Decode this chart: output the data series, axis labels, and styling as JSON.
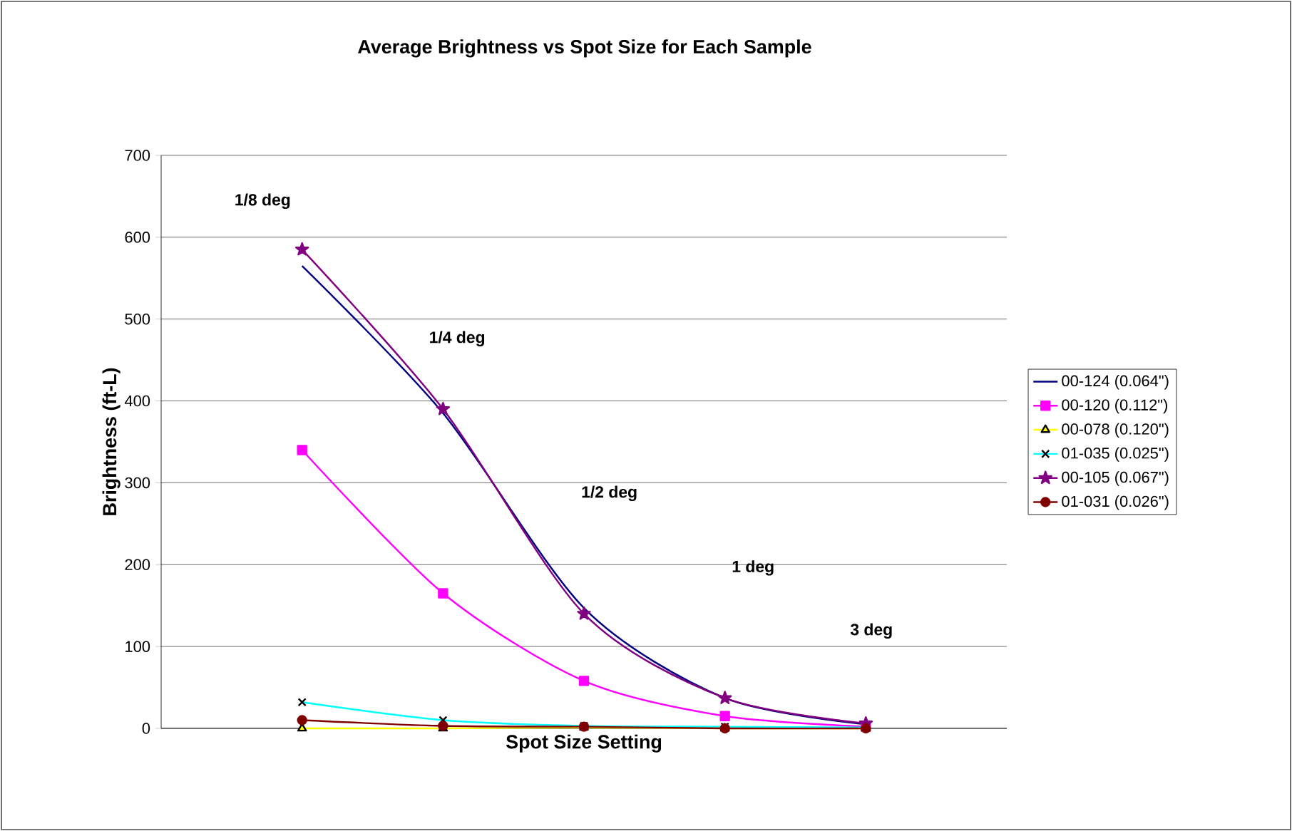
{
  "chart_data": {
    "type": "line",
    "title": "Average Brightness vs Spot Size for Each Sample",
    "xlabel": "Spot Size Setting",
    "ylabel": "Brightness (ft-L)",
    "categories": [
      null,
      null,
      null,
      null,
      null
    ],
    "series": [
      {
        "name": "00-124 (0.064\")",
        "color": "#000080",
        "marker": "none",
        "values": [
          565,
          385,
          147,
          37,
          5
        ]
      },
      {
        "name": "00-120 (0.112\")",
        "color": "#ff00ff",
        "marker": "square",
        "values": [
          340,
          165,
          58,
          15,
          2
        ]
      },
      {
        "name": "00-078 (0.120\")",
        "color": "#ffff00",
        "marker": "triangle",
        "values": [
          0,
          0,
          1,
          0,
          0
        ]
      },
      {
        "name": "01-035 (0.025\")",
        "color": "#00ffff",
        "marker": "cross",
        "values": [
          32,
          10,
          3,
          2,
          1
        ]
      },
      {
        "name": "00-105 (0.067\")",
        "color": "#800080",
        "marker": "star",
        "values": [
          585,
          390,
          140,
          37,
          6
        ]
      },
      {
        "name": "01-031 (0.026\")",
        "color": "#800000",
        "marker": "circle",
        "values": [
          10,
          3,
          2,
          0,
          0
        ]
      }
    ],
    "annotations": [
      "1/8 deg",
      "1/4 deg",
      "1/2 deg",
      "1 deg",
      "3 deg"
    ],
    "ylim": [
      0,
      700
    ],
    "yticks": [
      0,
      100,
      200,
      300,
      400,
      500,
      600,
      700
    ],
    "grid": "y",
    "legend": "right",
    "line_style": "solid"
  }
}
